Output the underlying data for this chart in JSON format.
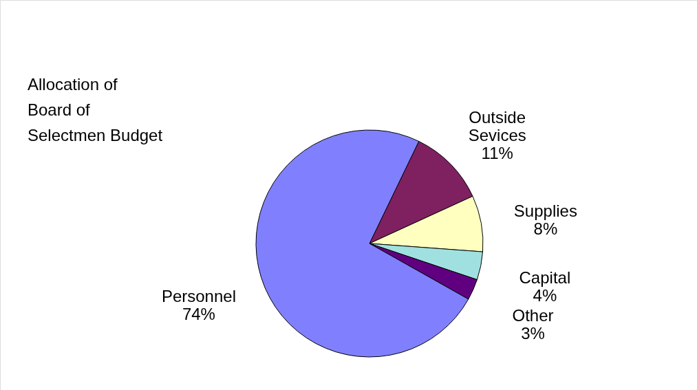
{
  "chart_data": {
    "type": "pie",
    "title": "Allocation of Board of Selectmen Budget",
    "categories": [
      "Outside Sevices",
      "Supplies",
      "Capital",
      "Other",
      "Personnel"
    ],
    "values": [
      11,
      8,
      4,
      3,
      74
    ],
    "colors": [
      "#7f2060",
      "#ffffc0",
      "#a0e0e0",
      "#600080",
      "#8080ff"
    ],
    "value_labels": [
      "11%",
      "8%",
      "4%",
      "3%",
      "74%"
    ]
  }
}
